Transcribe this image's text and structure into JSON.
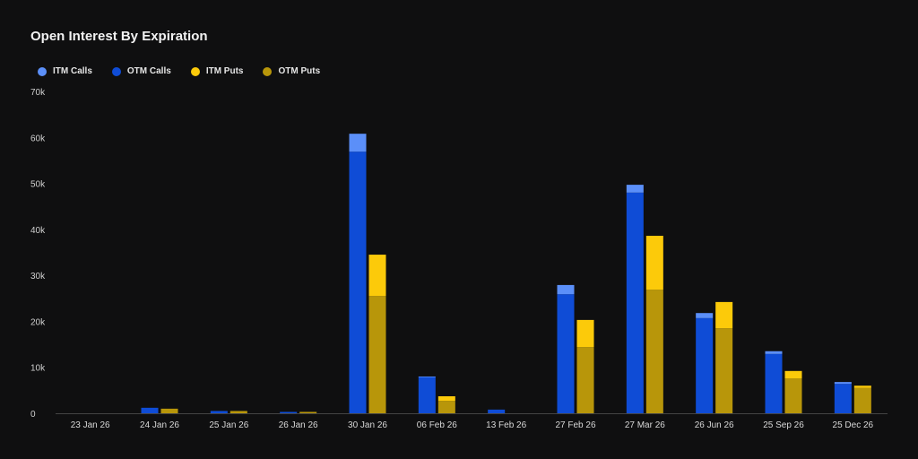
{
  "chart_data": {
    "type": "bar",
    "stacked": true,
    "title": "Open Interest By Expiration",
    "categories": [
      "23 Jan 26",
      "24 Jan 26",
      "25 Jan 26",
      "26 Jan 26",
      "30 Jan 26",
      "06 Feb 26",
      "13 Feb 26",
      "27 Feb 26",
      "27 Mar 26",
      "26 Jun 26",
      "25 Sep 26",
      "25 Dec 26"
    ],
    "series": [
      {
        "name": "ITM Calls",
        "stack": "calls",
        "color": "#5b8ff9",
        "values": [
          0,
          0,
          0,
          0,
          3900,
          100,
          0,
          2000,
          1700,
          1100,
          600,
          400
        ]
      },
      {
        "name": "OTM Calls",
        "stack": "calls",
        "color": "#0f4cd6",
        "values": [
          0,
          1200,
          500,
          300,
          56900,
          7900,
          800,
          25900,
          48000,
          20700,
          12900,
          6400
        ]
      },
      {
        "name": "ITM Puts",
        "stack": "puts",
        "color": "#fcca0a",
        "values": [
          0,
          0,
          0,
          0,
          9000,
          1000,
          0,
          5900,
          11700,
          5700,
          1600,
          500
        ]
      },
      {
        "name": "OTM Puts",
        "stack": "puts",
        "color": "#b8960a",
        "values": [
          0,
          1000,
          500,
          300,
          25500,
          2700,
          0,
          14400,
          26900,
          18500,
          7600,
          5500
        ]
      }
    ],
    "yticks": [
      "0",
      "10k",
      "20k",
      "30k",
      "40k",
      "50k",
      "60k",
      "70k"
    ],
    "ylim": [
      0,
      70000
    ],
    "legend_position": "top-left",
    "grid": false
  }
}
